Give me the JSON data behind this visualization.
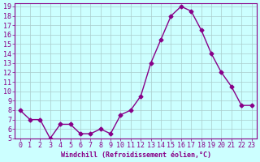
{
  "x": [
    0,
    1,
    2,
    3,
    4,
    5,
    6,
    7,
    8,
    9,
    10,
    11,
    12,
    13,
    14,
    15,
    16,
    17,
    18,
    19,
    20,
    21,
    22,
    23
  ],
  "y": [
    8,
    7,
    7,
    5,
    6.5,
    6.5,
    5.5,
    5.5,
    6,
    5.5,
    7.5,
    8,
    9.5,
    13,
    15.5,
    18,
    19,
    18.5,
    16.5,
    14,
    12,
    10.5,
    8.5,
    8.5
  ],
  "xlabel": "Windchill (Refroidissement éolien,°C)",
  "ylabel": "",
  "ylim": [
    5,
    19
  ],
  "xlim": [
    -0.5,
    23.5
  ],
  "yticks": [
    5,
    6,
    7,
    8,
    9,
    10,
    11,
    12,
    13,
    14,
    15,
    16,
    17,
    18,
    19
  ],
  "xticks": [
    0,
    1,
    2,
    3,
    4,
    5,
    6,
    7,
    8,
    9,
    10,
    11,
    12,
    13,
    14,
    15,
    16,
    17,
    18,
    19,
    20,
    21,
    22,
    23
  ],
  "line_color": "#880088",
  "marker": "D",
  "marker_size": 2.5,
  "bg_color": "#ccffff",
  "grid_color": "#aacccc",
  "label_color": "#880088",
  "tick_color": "#880088",
  "font_size": 6
}
